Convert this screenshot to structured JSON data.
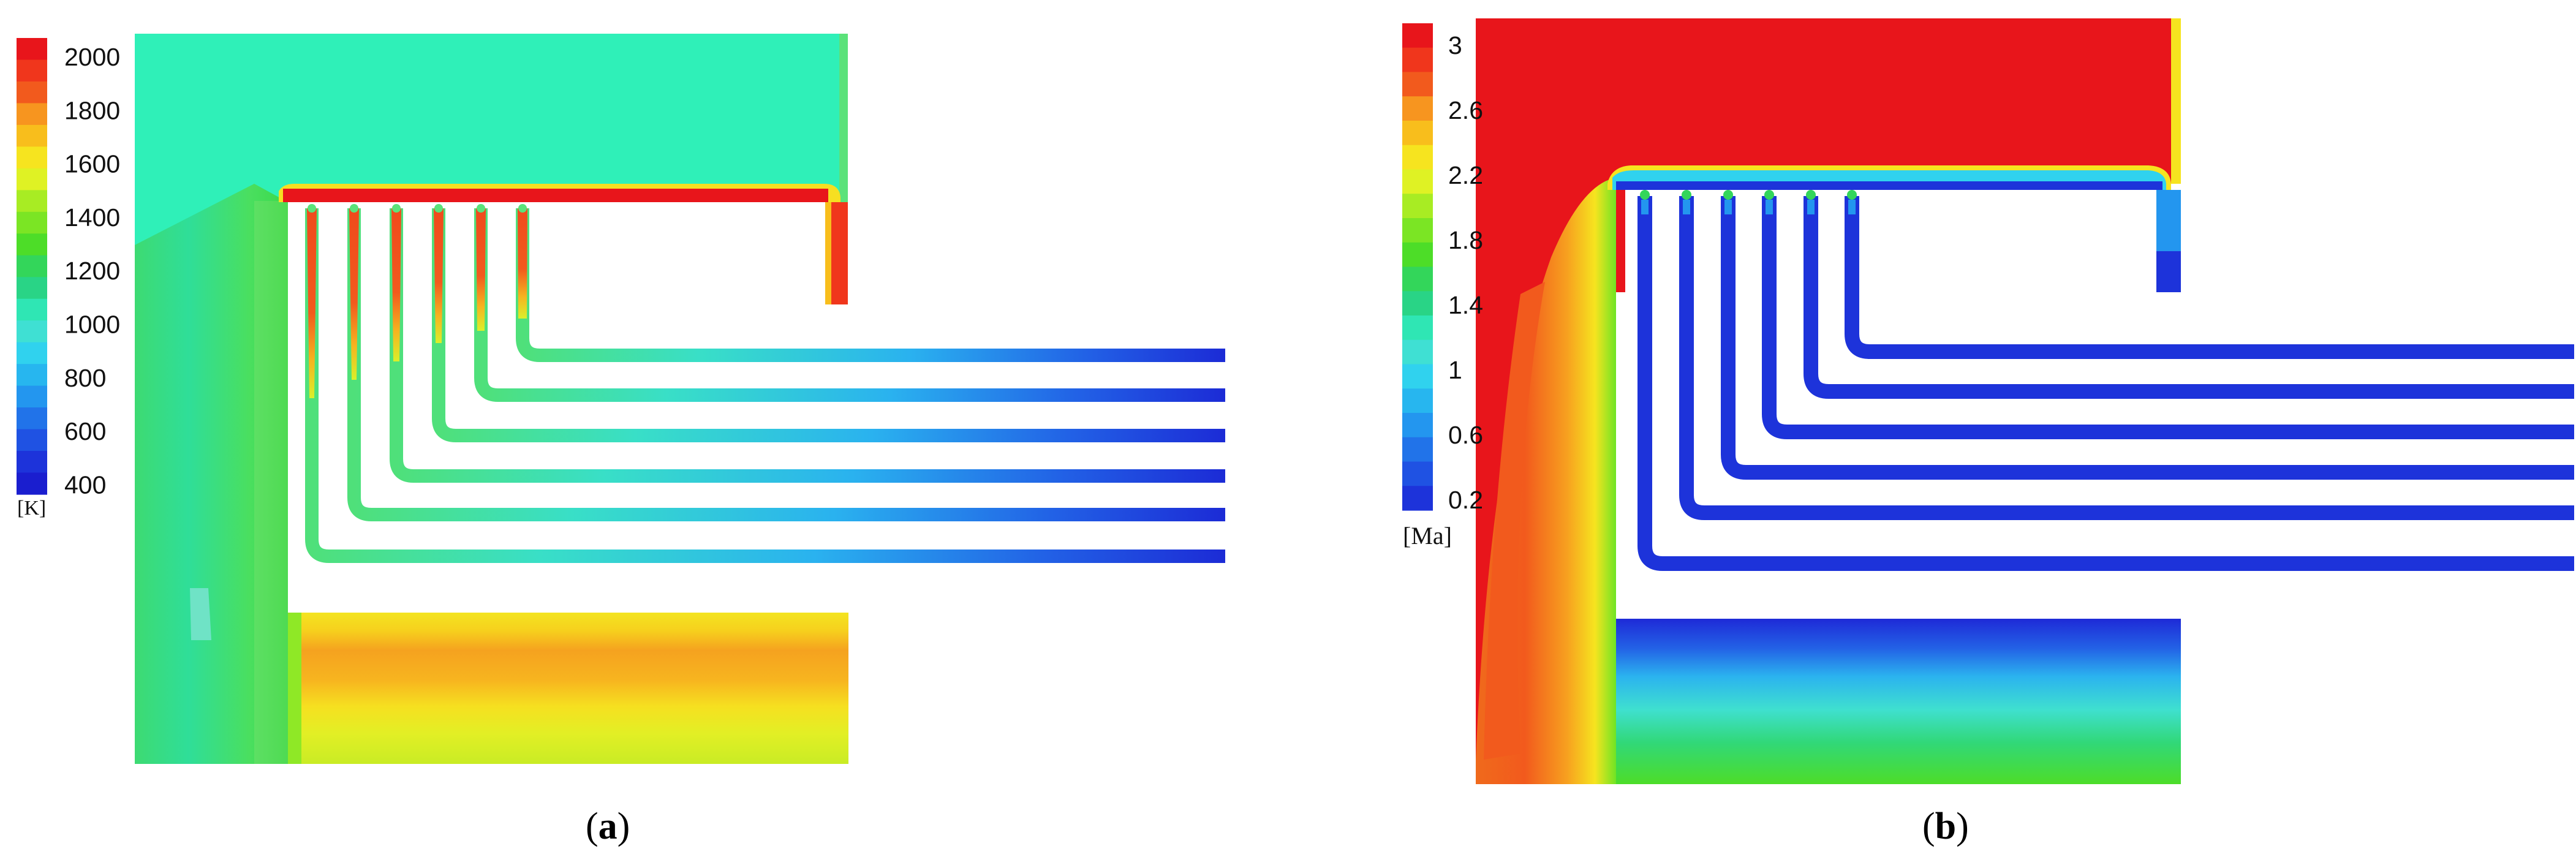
{
  "panels": [
    {
      "id": "a",
      "caption": {
        "open": "(",
        "letter": "a",
        "close": ")"
      },
      "colorbar": {
        "ticks": [
          "2000",
          "1800",
          "1600",
          "1400",
          "1200",
          "1000",
          "800",
          "600",
          "400"
        ],
        "unit": "[K]",
        "colors": [
          "#e8151b",
          "#f0361c",
          "#f25a1d",
          "#f7951f",
          "#f8be1c",
          "#f6e41f",
          "#dff224",
          "#a8ec23",
          "#7be524",
          "#4ddd28",
          "#33d65a",
          "#29d486",
          "#2fe6b4",
          "#3fe0d3",
          "#30d2ee",
          "#27b6ef",
          "#2396ef",
          "#2173e9",
          "#1f52e3",
          "#1d33da",
          "#1a1ecf"
        ]
      }
    },
    {
      "id": "b",
      "caption": {
        "open": "(",
        "letter": "b",
        "close": ")"
      },
      "colorbar": {
        "ticks": [
          "3",
          "2.6",
          "2.2",
          "1.8",
          "1.4",
          "1",
          "0.6",
          "0.2"
        ],
        "unit": "[Ma]",
        "colors": [
          "#e8151b",
          "#f0361c",
          "#f25a1d",
          "#f7951f",
          "#f8be1c",
          "#f6e41f",
          "#dff224",
          "#a8ec23",
          "#7be524",
          "#4ddd28",
          "#33d65a",
          "#29d486",
          "#2fe6b4",
          "#3fe0d3",
          "#30d2ee",
          "#27b6ef",
          "#2396ef",
          "#2173e9",
          "#1f52e3",
          "#1d33da"
        ]
      }
    }
  ]
}
